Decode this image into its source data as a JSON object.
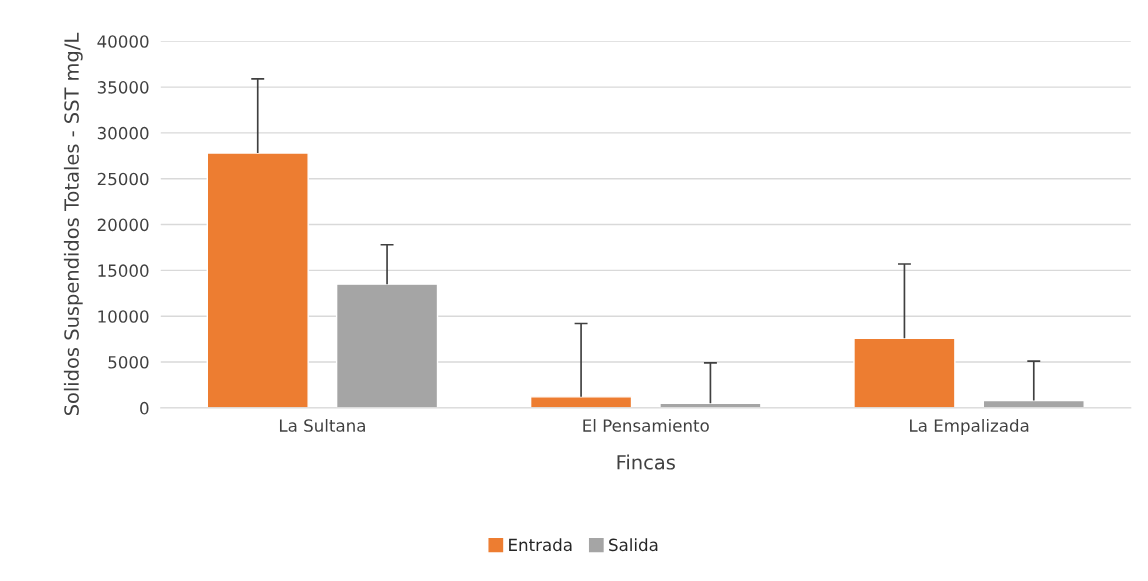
{
  "chart_data": {
    "type": "bar",
    "xlabel": "Fincas",
    "ylabel": "Solidos Suspendidos Totales - SST mg/L",
    "categories": [
      "La Sultana",
      "El Pensamiento",
      "La Empalizada"
    ],
    "series": [
      {
        "name": "Entrada",
        "color": "#ed7d31",
        "values": [
          27800,
          1200,
          7600
        ],
        "errors": [
          [
            27800,
            35900
          ],
          [
            1200,
            9200
          ],
          [
            7600,
            15700
          ]
        ]
      },
      {
        "name": "Salida",
        "color": "#a5a5a5",
        "values": [
          13500,
          500,
          800
        ],
        "errors": [
          [
            13500,
            17800
          ],
          [
            500,
            4900
          ],
          [
            800,
            5100
          ]
        ]
      }
    ],
    "ylim": [
      0,
      40000
    ],
    "yticks": [
      0,
      5000,
      10000,
      15000,
      20000,
      25000,
      30000,
      35000,
      40000
    ],
    "grid": "y",
    "legend": "bottom"
  }
}
